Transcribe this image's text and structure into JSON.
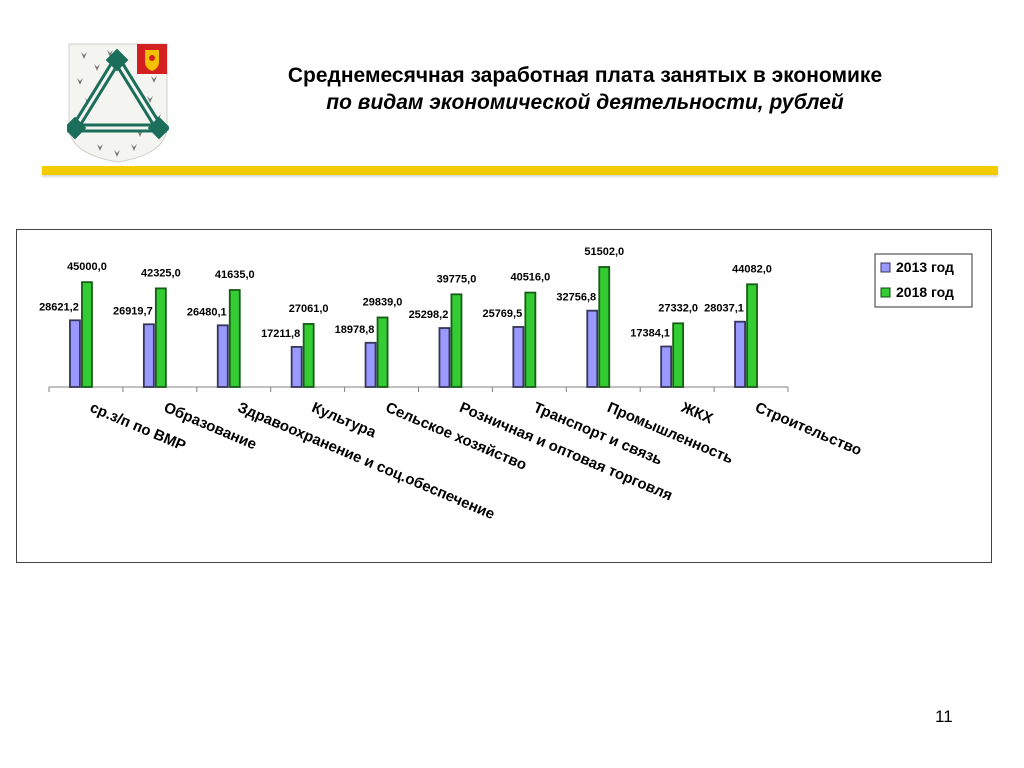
{
  "slide": {
    "title_line1": "Среднемесячная заработная плата занятых в экономике",
    "title_line2": "по видам экономической деятельности, рублей",
    "page_number": "11",
    "accent_color": "#f2cc00"
  },
  "chart_data": {
    "type": "bar",
    "categories": [
      "ср.з/п по ВМР",
      "Образование",
      "Здравоохранение  и соц.обеспечение",
      "Культура",
      "Сельское хозяйство",
      "Розничная и оптовая торговля",
      "Транспорт и связь",
      "Промышленность",
      "ЖКХ",
      "Строительство"
    ],
    "series": [
      {
        "name": "2013 год",
        "color": "#9999ff",
        "values": [
          28621.2,
          26919.7,
          26480.1,
          17211.8,
          18978.8,
          25298.2,
          25769.5,
          32756.8,
          17384.1,
          28037.1
        ],
        "labels": [
          "28621,2",
          "26919,7",
          "26480,1",
          "17211,8",
          "18978,8",
          "25298,2",
          "25769,5",
          "32756,8",
          "17384,1",
          "28037,1"
        ]
      },
      {
        "name": "2018 год",
        "color": "#33cc33",
        "values": [
          45000.0,
          42325.0,
          41635.0,
          27061.0,
          29839.0,
          39775.0,
          40516.0,
          51502.0,
          27332.0,
          44082.0
        ],
        "labels": [
          "45000,0",
          "42325,0",
          "41635,0",
          "27061,0",
          "29839,0",
          "39775,0",
          "40516,0",
          "51502,0",
          "27332,0",
          "44082,0"
        ]
      }
    ],
    "ylim": [
      0,
      51502
    ],
    "grid": false,
    "legend_position": "top-right"
  }
}
